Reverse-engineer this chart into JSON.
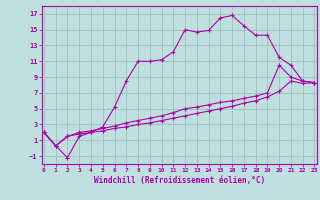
{
  "xlabel": "Windchill (Refroidissement éolien,°C)",
  "bg_color": "#c0e0e0",
  "grid_color": "#a0c0c0",
  "line_color": "#aa00aa",
  "spine_color": "#aa00aa",
  "x_ticks": [
    0,
    1,
    2,
    3,
    4,
    5,
    6,
    7,
    8,
    9,
    10,
    11,
    12,
    13,
    14,
    15,
    16,
    17,
    18,
    19,
    20,
    21,
    22,
    23
  ],
  "y_ticks": [
    -1,
    1,
    3,
    5,
    7,
    9,
    11,
    13,
    15,
    17
  ],
  "xlim": [
    -0.2,
    23.2
  ],
  "ylim": [
    -2.0,
    18.0
  ],
  "line1_x": [
    0,
    1,
    2,
    3,
    4,
    5,
    6,
    7,
    8,
    9,
    10,
    11,
    12,
    13,
    14,
    15,
    16,
    17,
    18,
    19,
    20,
    21,
    22,
    23
  ],
  "line1_y": [
    2.0,
    0.3,
    -1.2,
    1.5,
    2.0,
    2.7,
    5.2,
    8.5,
    11.0,
    11.0,
    11.2,
    12.2,
    15.0,
    14.7,
    14.9,
    16.5,
    16.8,
    15.5,
    14.3,
    14.3,
    11.5,
    10.5,
    8.5,
    8.3
  ],
  "line2_x": [
    0,
    1,
    2,
    3,
    4,
    5,
    6,
    7,
    8,
    9,
    10,
    11,
    12,
    13,
    14,
    15,
    16,
    17,
    18,
    19,
    20,
    21,
    22,
    23
  ],
  "line2_y": [
    2.0,
    0.3,
    1.5,
    2.0,
    2.2,
    2.5,
    2.8,
    3.2,
    3.5,
    3.8,
    4.1,
    4.5,
    5.0,
    5.2,
    5.5,
    5.8,
    6.0,
    6.3,
    6.6,
    7.0,
    10.5,
    9.0,
    8.5,
    8.3
  ],
  "line3_x": [
    0,
    1,
    2,
    3,
    4,
    5,
    6,
    7,
    8,
    9,
    10,
    11,
    12,
    13,
    14,
    15,
    16,
    17,
    18,
    19,
    20,
    21,
    22,
    23
  ],
  "line3_y": [
    2.0,
    0.3,
    1.5,
    1.8,
    2.0,
    2.2,
    2.5,
    2.7,
    3.0,
    3.2,
    3.5,
    3.8,
    4.1,
    4.4,
    4.7,
    5.0,
    5.3,
    5.7,
    6.0,
    6.5,
    7.2,
    8.5,
    8.2,
    8.3
  ]
}
